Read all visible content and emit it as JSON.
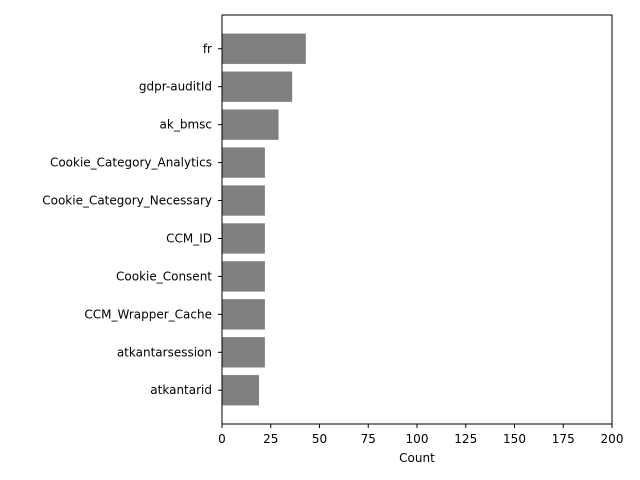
{
  "chart_data": {
    "type": "bar",
    "orientation": "horizontal",
    "categories": [
      "fr",
      "gdpr-auditId",
      "ak_bmsc",
      "Cookie_Category_Analytics",
      "Cookie_Category_Necessary",
      "CCM_ID",
      "Cookie_Consent",
      "CCM_Wrapper_Cache",
      "atkantarsession",
      "atkantarid"
    ],
    "values": [
      43,
      36,
      29,
      22,
      22,
      22,
      22,
      22,
      22,
      19
    ],
    "title": "",
    "xlabel": "Count",
    "ylabel": "",
    "xlim": [
      0,
      200
    ],
    "xticks": [
      0,
      25,
      50,
      75,
      100,
      125,
      150,
      175,
      200
    ],
    "grid": false,
    "bar_color": "#808080"
  }
}
